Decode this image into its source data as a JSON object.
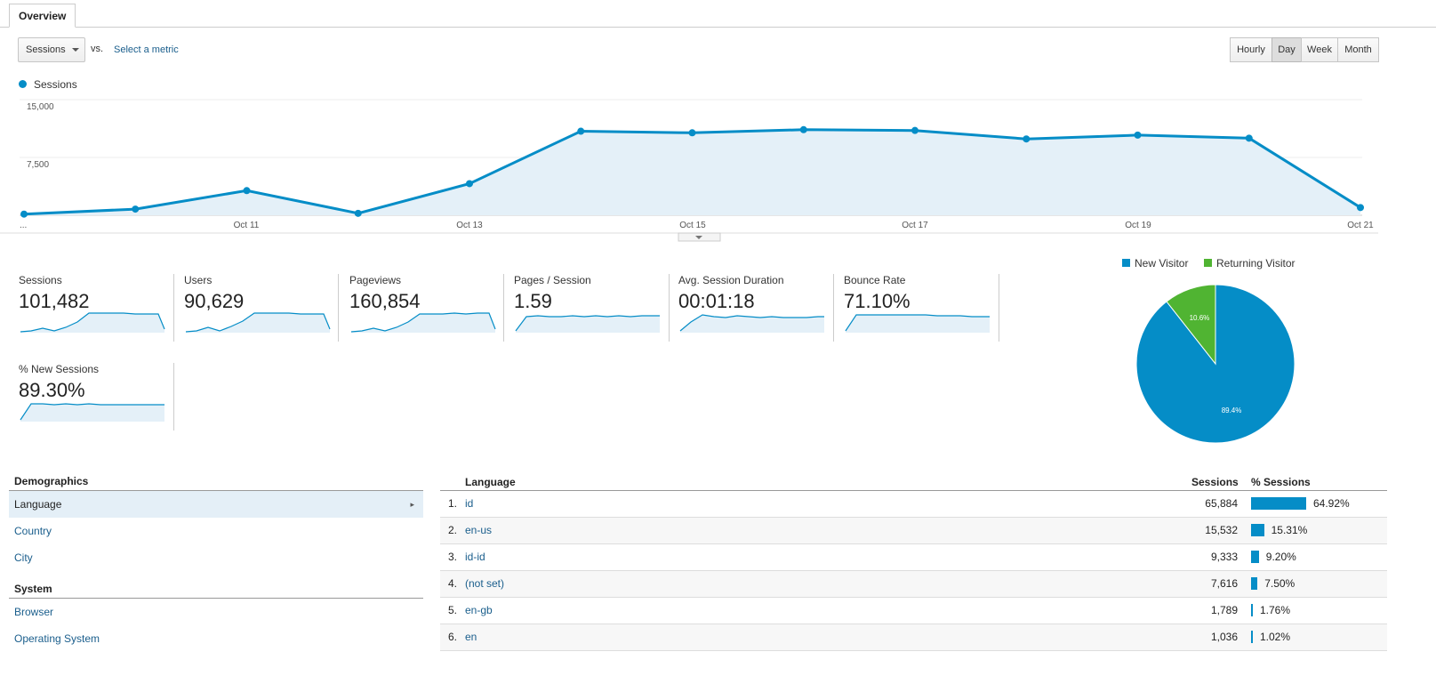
{
  "tab": {
    "label": "Overview"
  },
  "metric_selector": {
    "value": "Sessions",
    "vs_label": "vs.",
    "select_label": "Select a metric"
  },
  "periods": [
    {
      "label": "Hourly",
      "active": false
    },
    {
      "label": "Day",
      "active": true
    },
    {
      "label": "Week",
      "active": false
    },
    {
      "label": "Month",
      "active": false
    }
  ],
  "colors": {
    "accent": "#058dc7",
    "returning": "#50b432",
    "link": "#1a5e8c"
  },
  "chart_data": {
    "type": "line",
    "series": [
      {
        "name": "Sessions",
        "values": [
          150,
          800,
          3200,
          250,
          4100,
          10900,
          10700,
          11100,
          11000,
          9900,
          10400,
          10000,
          1000
        ]
      }
    ],
    "x": [
      "Oct 9",
      "Oct 10",
      "Oct 11",
      "Oct 12",
      "Oct 13",
      "Oct 14",
      "Oct 15",
      "Oct 16",
      "Oct 17",
      "Oct 18",
      "Oct 19",
      "Oct 20",
      "Oct 21"
    ],
    "x_tick_labels": [
      "...",
      "Oct 11",
      "Oct 13",
      "Oct 15",
      "Oct 17",
      "Oct 19",
      "Oct 21"
    ],
    "y_tick_labels": [
      "15,000",
      "7,500"
    ],
    "ylim": [
      0,
      15000
    ],
    "legend": "top-left",
    "grid": true
  },
  "scorecards": [
    {
      "label": "Sessions",
      "value": "101,482"
    },
    {
      "label": "Users",
      "value": "90,629"
    },
    {
      "label": "Pageviews",
      "value": "160,854"
    },
    {
      "label": "Pages / Session",
      "value": "1.59"
    },
    {
      "label": "Avg. Session Duration",
      "value": "00:01:18"
    },
    {
      "label": "Bounce Rate",
      "value": "71.10%"
    },
    {
      "label": "% New Sessions",
      "value": "89.30%"
    }
  ],
  "pie": {
    "legend": [
      "New Visitor",
      "Returning Visitor"
    ],
    "slices": [
      {
        "name": "New Visitor",
        "value": 89.4,
        "label": "89.4%"
      },
      {
        "name": "Returning Visitor",
        "value": 10.6,
        "label": "10.6%"
      }
    ]
  },
  "demographics": {
    "heading": "Demographics",
    "items": [
      "Language",
      "Country",
      "City"
    ],
    "system_heading": "System",
    "system_items": [
      "Browser",
      "Operating System"
    ]
  },
  "table": {
    "headers": {
      "dimension": "Language",
      "sessions": "Sessions",
      "pct": "% Sessions"
    },
    "rows": [
      {
        "num": "1.",
        "lang": "id",
        "sessions": "65,884",
        "pct": "64.92%",
        "share": 64.92
      },
      {
        "num": "2.",
        "lang": "en-us",
        "sessions": "15,532",
        "pct": "15.31%",
        "share": 15.31
      },
      {
        "num": "3.",
        "lang": "id-id",
        "sessions": "9,333",
        "pct": "9.20%",
        "share": 9.2
      },
      {
        "num": "4.",
        "lang": "(not set)",
        "sessions": "7,616",
        "pct": "7.50%",
        "share": 7.5
      },
      {
        "num": "5.",
        "lang": "en-gb",
        "sessions": "1,789",
        "pct": "1.76%",
        "share": 1.76
      },
      {
        "num": "6.",
        "lang": "en",
        "sessions": "1,036",
        "pct": "1.02%",
        "share": 1.02
      }
    ]
  }
}
